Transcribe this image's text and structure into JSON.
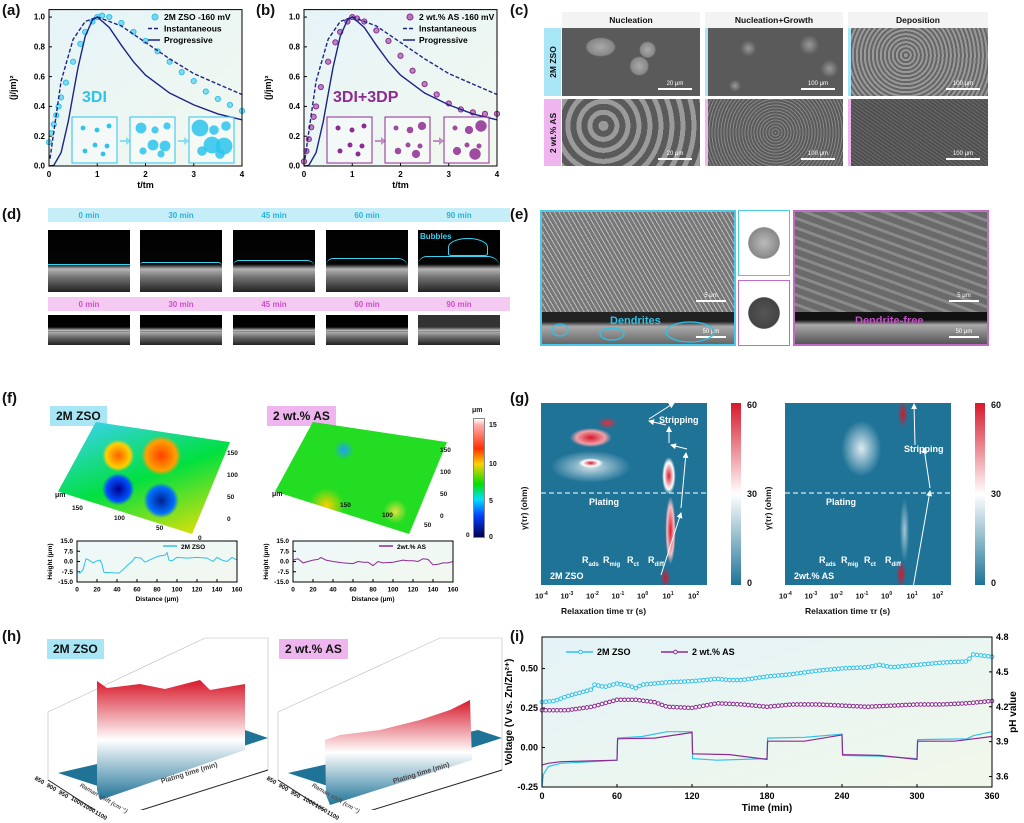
{
  "panel_labels": {
    "a": "(a)",
    "b": "(b)",
    "c": "(c)",
    "d": "(d)",
    "e": "(e)",
    "f": "(f)",
    "g": "(g)",
    "h": "(h)",
    "i": "(i)"
  },
  "colors": {
    "zso": "#2cc3ec",
    "as": "#8e2b92",
    "model": "#1d2585",
    "heat_high": "#d7182a",
    "heat_low": "#1f7397"
  },
  "panel_c": {
    "columns": [
      "Nucleation",
      "Nucleation+Growth",
      "Deposition"
    ],
    "rows": [
      "2M ZSO",
      "2 wt.% AS"
    ],
    "scale_bars": [
      [
        "20 μm",
        "100 μm",
        "100 μm"
      ],
      [
        "20 μm",
        "100 μm",
        "100 μm"
      ]
    ]
  },
  "panel_d": {
    "times": [
      "0 min",
      "30 min",
      "45 min",
      "60 min",
      "90 min"
    ],
    "bubbles_label": "Bubbles"
  },
  "panel_e": {
    "left_label": "Dendrites",
    "right_label": "Dendrite-free",
    "scale_top": "5 μm",
    "scale_bottom": "50 μm"
  },
  "panel_f": {
    "tags": [
      "2M ZSO",
      "2 wt.% AS"
    ],
    "map_unit": "μm",
    "map_ticks_x": [
      "150",
      "100",
      "50",
      "0"
    ],
    "map_ticks_y": [
      "150",
      "100",
      "50",
      "0"
    ],
    "colorbar": {
      "unit": "μm",
      "ticks": [
        "15",
        "10",
        "5",
        "0"
      ]
    }
  },
  "panel_g": {
    "ylabel": "γ(τr) (ohm)",
    "xlabel": "Relaxation time τr (s)",
    "tick_base": "10",
    "tick_exponents": [
      "-4",
      "-3",
      "-2",
      "-1",
      "0",
      "1",
      "2"
    ],
    "colorbar_ticks": [
      "60",
      "30",
      "0"
    ],
    "stripping": "Stripping",
    "plating": "Plating",
    "resistances": [
      {
        "main": "R",
        "sub": "ads"
      },
      {
        "main": "R",
        "sub": "mig"
      },
      {
        "main": "R",
        "sub": "ct"
      },
      {
        "main": "R",
        "sub": "diff"
      }
    ],
    "maps": [
      "2M ZSO",
      "2wt.% AS"
    ]
  },
  "panel_h": {
    "tags": [
      "2M ZSO",
      "2 wt.% AS"
    ],
    "raman_axis": "Raman shift (cm⁻¹)",
    "time_axis": "Plating time (min)",
    "raman_ticks": [
      "850",
      "900",
      "950",
      "1000",
      "1050",
      "1100"
    ]
  },
  "chart_data": [
    {
      "id": "a",
      "type": "line",
      "xlabel": "t/tm",
      "ylabel": "(j/jm)²",
      "xlim": [
        0,
        4
      ],
      "ylim": [
        0,
        1.05
      ],
      "xticks": [
        0,
        1,
        2,
        3,
        4
      ],
      "yticks": [
        0,
        0.2,
        0.4,
        0.6,
        0.8,
        1.0
      ],
      "annotation": "3DI",
      "legend": "top-right",
      "series": [
        {
          "name": "2M ZSO  -160 mV",
          "style": "markers",
          "color": "#2cc3ec",
          "x": [
            0,
            0.05,
            0.1,
            0.15,
            0.2,
            0.25,
            0.35,
            0.5,
            0.65,
            0.75,
            0.9,
            1.0,
            1.1,
            1.25,
            1.5,
            1.75,
            2.0,
            2.25,
            2.5,
            2.75,
            3.0,
            3.25,
            3.5,
            3.75,
            4.0
          ],
          "y": [
            0.16,
            0.22,
            0.28,
            0.34,
            0.4,
            0.46,
            0.56,
            0.7,
            0.82,
            0.9,
            0.97,
            1.0,
            1.01,
            1.0,
            0.96,
            0.9,
            0.84,
            0.77,
            0.7,
            0.63,
            0.57,
            0.5,
            0.45,
            0.41,
            0.37
          ]
        },
        {
          "name": "Instantaneous",
          "style": "dashed",
          "color": "#1d2585",
          "x": [
            0.02,
            0.1,
            0.25,
            0.5,
            0.75,
            1,
            1.5,
            2,
            2.5,
            3,
            3.5,
            4
          ],
          "y": [
            0.05,
            0.23,
            0.57,
            0.85,
            0.97,
            1.0,
            0.94,
            0.83,
            0.72,
            0.62,
            0.55,
            0.48
          ]
        },
        {
          "name": "Progressive",
          "style": "solid",
          "color": "#1d2585",
          "x": [
            0,
            0.1,
            0.25,
            0.4,
            0.5,
            0.6,
            0.75,
            0.9,
            1,
            1.25,
            1.5,
            1.75,
            2,
            2.5,
            3,
            3.5,
            4
          ],
          "y": [
            0,
            0.004,
            0.09,
            0.3,
            0.48,
            0.66,
            0.87,
            0.98,
            1.0,
            0.93,
            0.81,
            0.7,
            0.61,
            0.49,
            0.41,
            0.35,
            0.31
          ]
        }
      ]
    },
    {
      "id": "b",
      "type": "line",
      "xlabel": "t/tm",
      "ylabel": "(j/jm)²",
      "xlim": [
        0,
        4
      ],
      "ylim": [
        0,
        1.05
      ],
      "xticks": [
        0,
        1,
        2,
        3,
        4
      ],
      "yticks": [
        0,
        0.2,
        0.4,
        0.6,
        0.8,
        1.0
      ],
      "annotation": "3DI+3DP",
      "legend": "top-right",
      "series": [
        {
          "name": "2 wt.% AS -160 mV",
          "style": "markers",
          "color": "#8e2b92",
          "x": [
            0,
            0.05,
            0.1,
            0.15,
            0.2,
            0.25,
            0.35,
            0.5,
            0.65,
            0.75,
            0.9,
            1.0,
            1.1,
            1.25,
            1.5,
            1.75,
            2.0,
            2.25,
            2.5,
            2.75,
            3.0,
            3.25,
            3.5,
            3.75,
            4.0
          ],
          "y": [
            0.03,
            0.1,
            0.18,
            0.26,
            0.33,
            0.4,
            0.53,
            0.7,
            0.83,
            0.9,
            0.97,
            1.0,
            0.99,
            0.97,
            0.91,
            0.84,
            0.74,
            0.64,
            0.55,
            0.48,
            0.42,
            0.38,
            0.36,
            0.35,
            0.35
          ]
        },
        {
          "name": "Instantaneous",
          "style": "dashed",
          "color": "#1d2585",
          "x": [
            0.02,
            0.1,
            0.25,
            0.5,
            0.75,
            1,
            1.5,
            2,
            2.5,
            3,
            3.5,
            4
          ],
          "y": [
            0.05,
            0.23,
            0.57,
            0.85,
            0.97,
            1.0,
            0.94,
            0.83,
            0.72,
            0.62,
            0.55,
            0.48
          ]
        },
        {
          "name": "Progressive",
          "style": "solid",
          "color": "#1d2585",
          "x": [
            0,
            0.1,
            0.25,
            0.4,
            0.5,
            0.6,
            0.75,
            0.9,
            1,
            1.25,
            1.5,
            1.75,
            2,
            2.5,
            3,
            3.5,
            4
          ],
          "y": [
            0,
            0.004,
            0.09,
            0.3,
            0.48,
            0.66,
            0.87,
            0.98,
            1.0,
            0.93,
            0.81,
            0.7,
            0.61,
            0.49,
            0.41,
            0.35,
            0.31
          ]
        }
      ]
    },
    {
      "id": "f1",
      "type": "line",
      "xlabel": "Distance (μm)",
      "ylabel": "Height (μm)",
      "xlim": [
        0,
        160
      ],
      "ylim": [
        -15,
        15
      ],
      "xticks": [
        0,
        20,
        40,
        60,
        80,
        100,
        120,
        140,
        160
      ],
      "yticks": [
        15,
        7.5,
        0,
        -7.5,
        -15
      ],
      "ytick_labels": [
        "15.0",
        "7.5",
        "0.0",
        "-7.5",
        "-15.0"
      ],
      "legend": "top-right",
      "series": [
        {
          "name": "2M ZSO",
          "style": "solid",
          "color": "#2cc3ec",
          "x": [
            0,
            3,
            6,
            9,
            12,
            16,
            20,
            23,
            25,
            27,
            35,
            42,
            46,
            50,
            55,
            58,
            64,
            68,
            75,
            82,
            88,
            90,
            92,
            95,
            100,
            110,
            120,
            130,
            136,
            140,
            145,
            150,
            155,
            160
          ],
          "y": [
            -7,
            -8.5,
            -6,
            2,
            1,
            -1,
            0.5,
            1,
            -2,
            -8,
            -8.2,
            -8.5,
            -6,
            -3,
            0,
            3,
            2.5,
            -0.5,
            2,
            4,
            4.5,
            6.5,
            1,
            0.5,
            3,
            2.5,
            3,
            2.5,
            0,
            3,
            1,
            0,
            3,
            1
          ]
        }
      ]
    },
    {
      "id": "f2",
      "type": "line",
      "xlabel": "Distance (μm)",
      "ylabel": "Height (μm)",
      "xlim": [
        0,
        160
      ],
      "ylim": [
        -15,
        15
      ],
      "xticks": [
        0,
        20,
        40,
        60,
        80,
        100,
        120,
        140,
        160
      ],
      "yticks": [
        15,
        7.5,
        0,
        -7.5,
        -15
      ],
      "ytick_labels": [
        "15.0",
        "7.5",
        "0.0",
        "-7.5",
        "-15.0"
      ],
      "legend": "top-right",
      "series": [
        {
          "name": "2wt.% AS",
          "style": "solid",
          "color": "#8e2b92",
          "x": [
            0,
            5,
            10,
            15,
            20,
            25,
            28,
            33,
            40,
            50,
            60,
            65,
            70,
            75,
            80,
            85,
            90,
            100,
            110,
            115,
            120,
            125,
            130,
            135,
            140,
            145,
            150,
            155,
            160
          ],
          "y": [
            1,
            2,
            -1,
            0,
            1,
            1.5,
            3,
            1,
            0,
            -1,
            -1.5,
            0,
            -0.5,
            -0.5,
            -3,
            0,
            -1,
            -0.5,
            1,
            0.5,
            0.5,
            0,
            2,
            1.5,
            -2.5,
            -2,
            -1,
            -1,
            0
          ]
        }
      ]
    },
    {
      "id": "i",
      "type": "line",
      "xlabel": "Time (min)",
      "ylabel": "Voltage (V vs. Zn/Zn²⁺)",
      "ylabel_right": "pH value",
      "xlim": [
        0,
        360
      ],
      "ylim": [
        -0.25,
        0.7
      ],
      "ylim_right": [
        3.51,
        4.8
      ],
      "xticks": [
        0,
        60,
        120,
        180,
        240,
        300,
        360
      ],
      "yticks": [
        -0.25,
        0,
        0.25,
        0.5
      ],
      "ytick_labels": [
        "-0.25",
        "0.00",
        "0.25",
        "0.50"
      ],
      "yticks_right": [
        3.6,
        3.9,
        4.2,
        4.5,
        4.8
      ],
      "legend": "top-left",
      "series": [
        {
          "name": "2M ZSO",
          "axis": "right",
          "style": "line-markers",
          "color": "#2cc3ec",
          "x": [
            0,
            10,
            20,
            30,
            40,
            42,
            50,
            60,
            70,
            75,
            80,
            100,
            120,
            140,
            150,
            160,
            180,
            200,
            220,
            240,
            260,
            270,
            280,
            300,
            320,
            340,
            345,
            360
          ],
          "y": [
            4.24,
            4.25,
            4.29,
            4.32,
            4.35,
            4.39,
            4.37,
            4.4,
            4.38,
            4.36,
            4.39,
            4.41,
            4.42,
            4.44,
            4.43,
            4.43,
            4.46,
            4.48,
            4.51,
            4.53,
            4.54,
            4.56,
            4.54,
            4.56,
            4.58,
            4.59,
            4.65,
            4.63
          ]
        },
        {
          "name": "2 wt.% AS",
          "axis": "right",
          "style": "line-markers",
          "color": "#8e2b92",
          "x": [
            0,
            20,
            40,
            60,
            75,
            90,
            100,
            120,
            140,
            160,
            180,
            200,
            220,
            240,
            260,
            280,
            300,
            320,
            340,
            360
          ],
          "y": [
            4.17,
            4.17,
            4.2,
            4.26,
            4.26,
            4.24,
            4.2,
            4.19,
            4.23,
            4.22,
            4.2,
            4.22,
            4.22,
            4.21,
            4.2,
            4.21,
            4.22,
            4.22,
            4.23,
            4.25
          ]
        },
        {
          "name": "2M ZSO",
          "axis": "left",
          "style": "solid",
          "color": "#2cc3ec",
          "x": [
            0,
            1,
            5,
            15,
            40,
            60,
            60.5,
            80,
            100,
            120,
            120.5,
            140,
            180,
            180.5,
            210,
            240,
            240.5,
            270,
            300,
            300.5,
            340,
            345,
            360
          ],
          "y": [
            -0.25,
            -0.17,
            -0.12,
            -0.1,
            -0.09,
            -0.08,
            0.06,
            0.07,
            0.1,
            0.1,
            -0.07,
            -0.08,
            -0.07,
            0.06,
            0.065,
            0.085,
            -0.05,
            -0.055,
            -0.07,
            0.05,
            0.055,
            0.075,
            0.1
          ]
        },
        {
          "name": "2 wt.% AS",
          "axis": "left",
          "style": "solid",
          "color": "#8e2b92",
          "x": [
            0,
            5,
            15,
            40,
            60,
            60.5,
            90,
            120,
            120.5,
            150,
            180,
            180.5,
            210,
            240,
            240.5,
            270,
            300,
            300.5,
            330,
            360
          ],
          "y": [
            -0.11,
            -0.1,
            -0.09,
            -0.085,
            -0.08,
            0.055,
            0.06,
            0.095,
            -0.04,
            -0.045,
            -0.075,
            0.04,
            0.04,
            0.08,
            -0.045,
            -0.05,
            -0.075,
            0.04,
            0.04,
            0.07
          ]
        }
      ]
    }
  ]
}
